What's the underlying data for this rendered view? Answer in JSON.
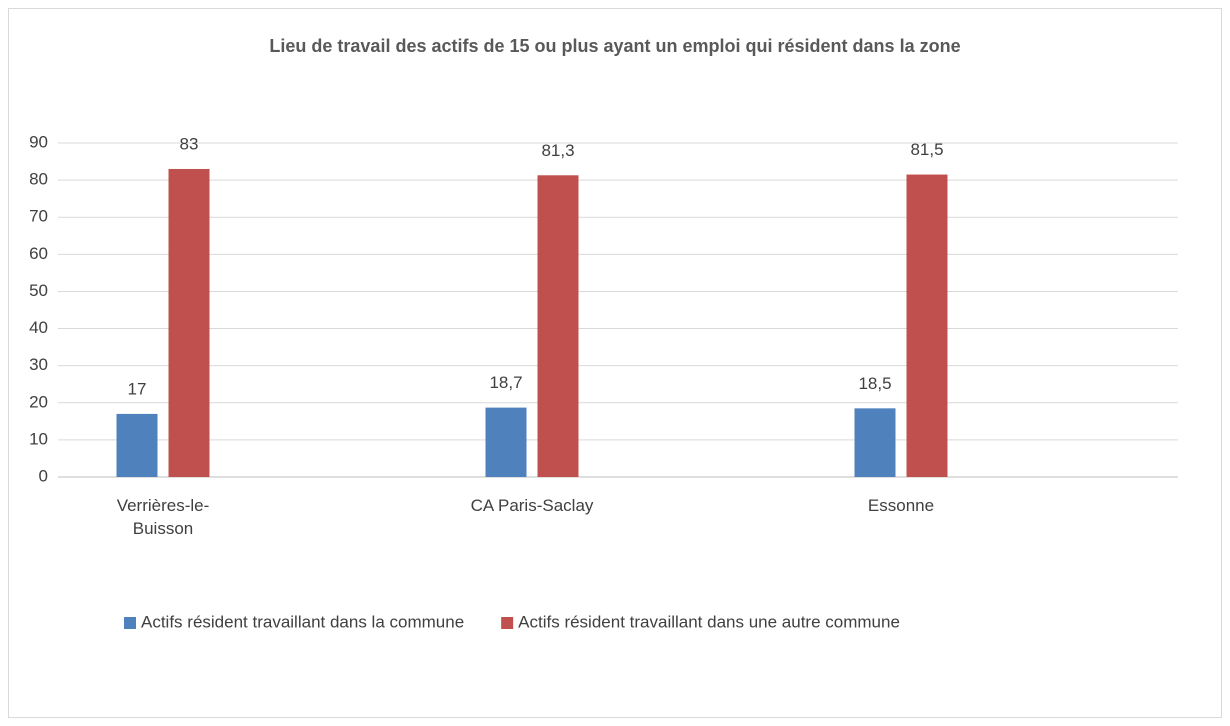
{
  "chart_data": {
    "type": "bar",
    "title": "Lieu de travail des actifs de 15 ou plus ayant un emploi qui résident dans la zone",
    "categories": [
      "Verrières-le-Buisson",
      "CA Paris-Saclay",
      "Essonne"
    ],
    "series": [
      {
        "name": "Actifs résident travaillant dans la commune",
        "color": "#4f81bd",
        "values": [
          17,
          18.7,
          18.5
        ],
        "value_labels": [
          "17",
          "18,7",
          "18,5"
        ]
      },
      {
        "name": "Actifs résident travaillant dans une autre commune",
        "color": "#c0504d",
        "values": [
          83,
          81.3,
          81.5
        ],
        "value_labels": [
          "83",
          "81,3",
          "81,5"
        ]
      }
    ],
    "ylim": [
      0,
      90
    ],
    "yticks": [
      0,
      10,
      20,
      30,
      40,
      50,
      60,
      70,
      80,
      90
    ],
    "grid": true,
    "legend": "bottom"
  }
}
